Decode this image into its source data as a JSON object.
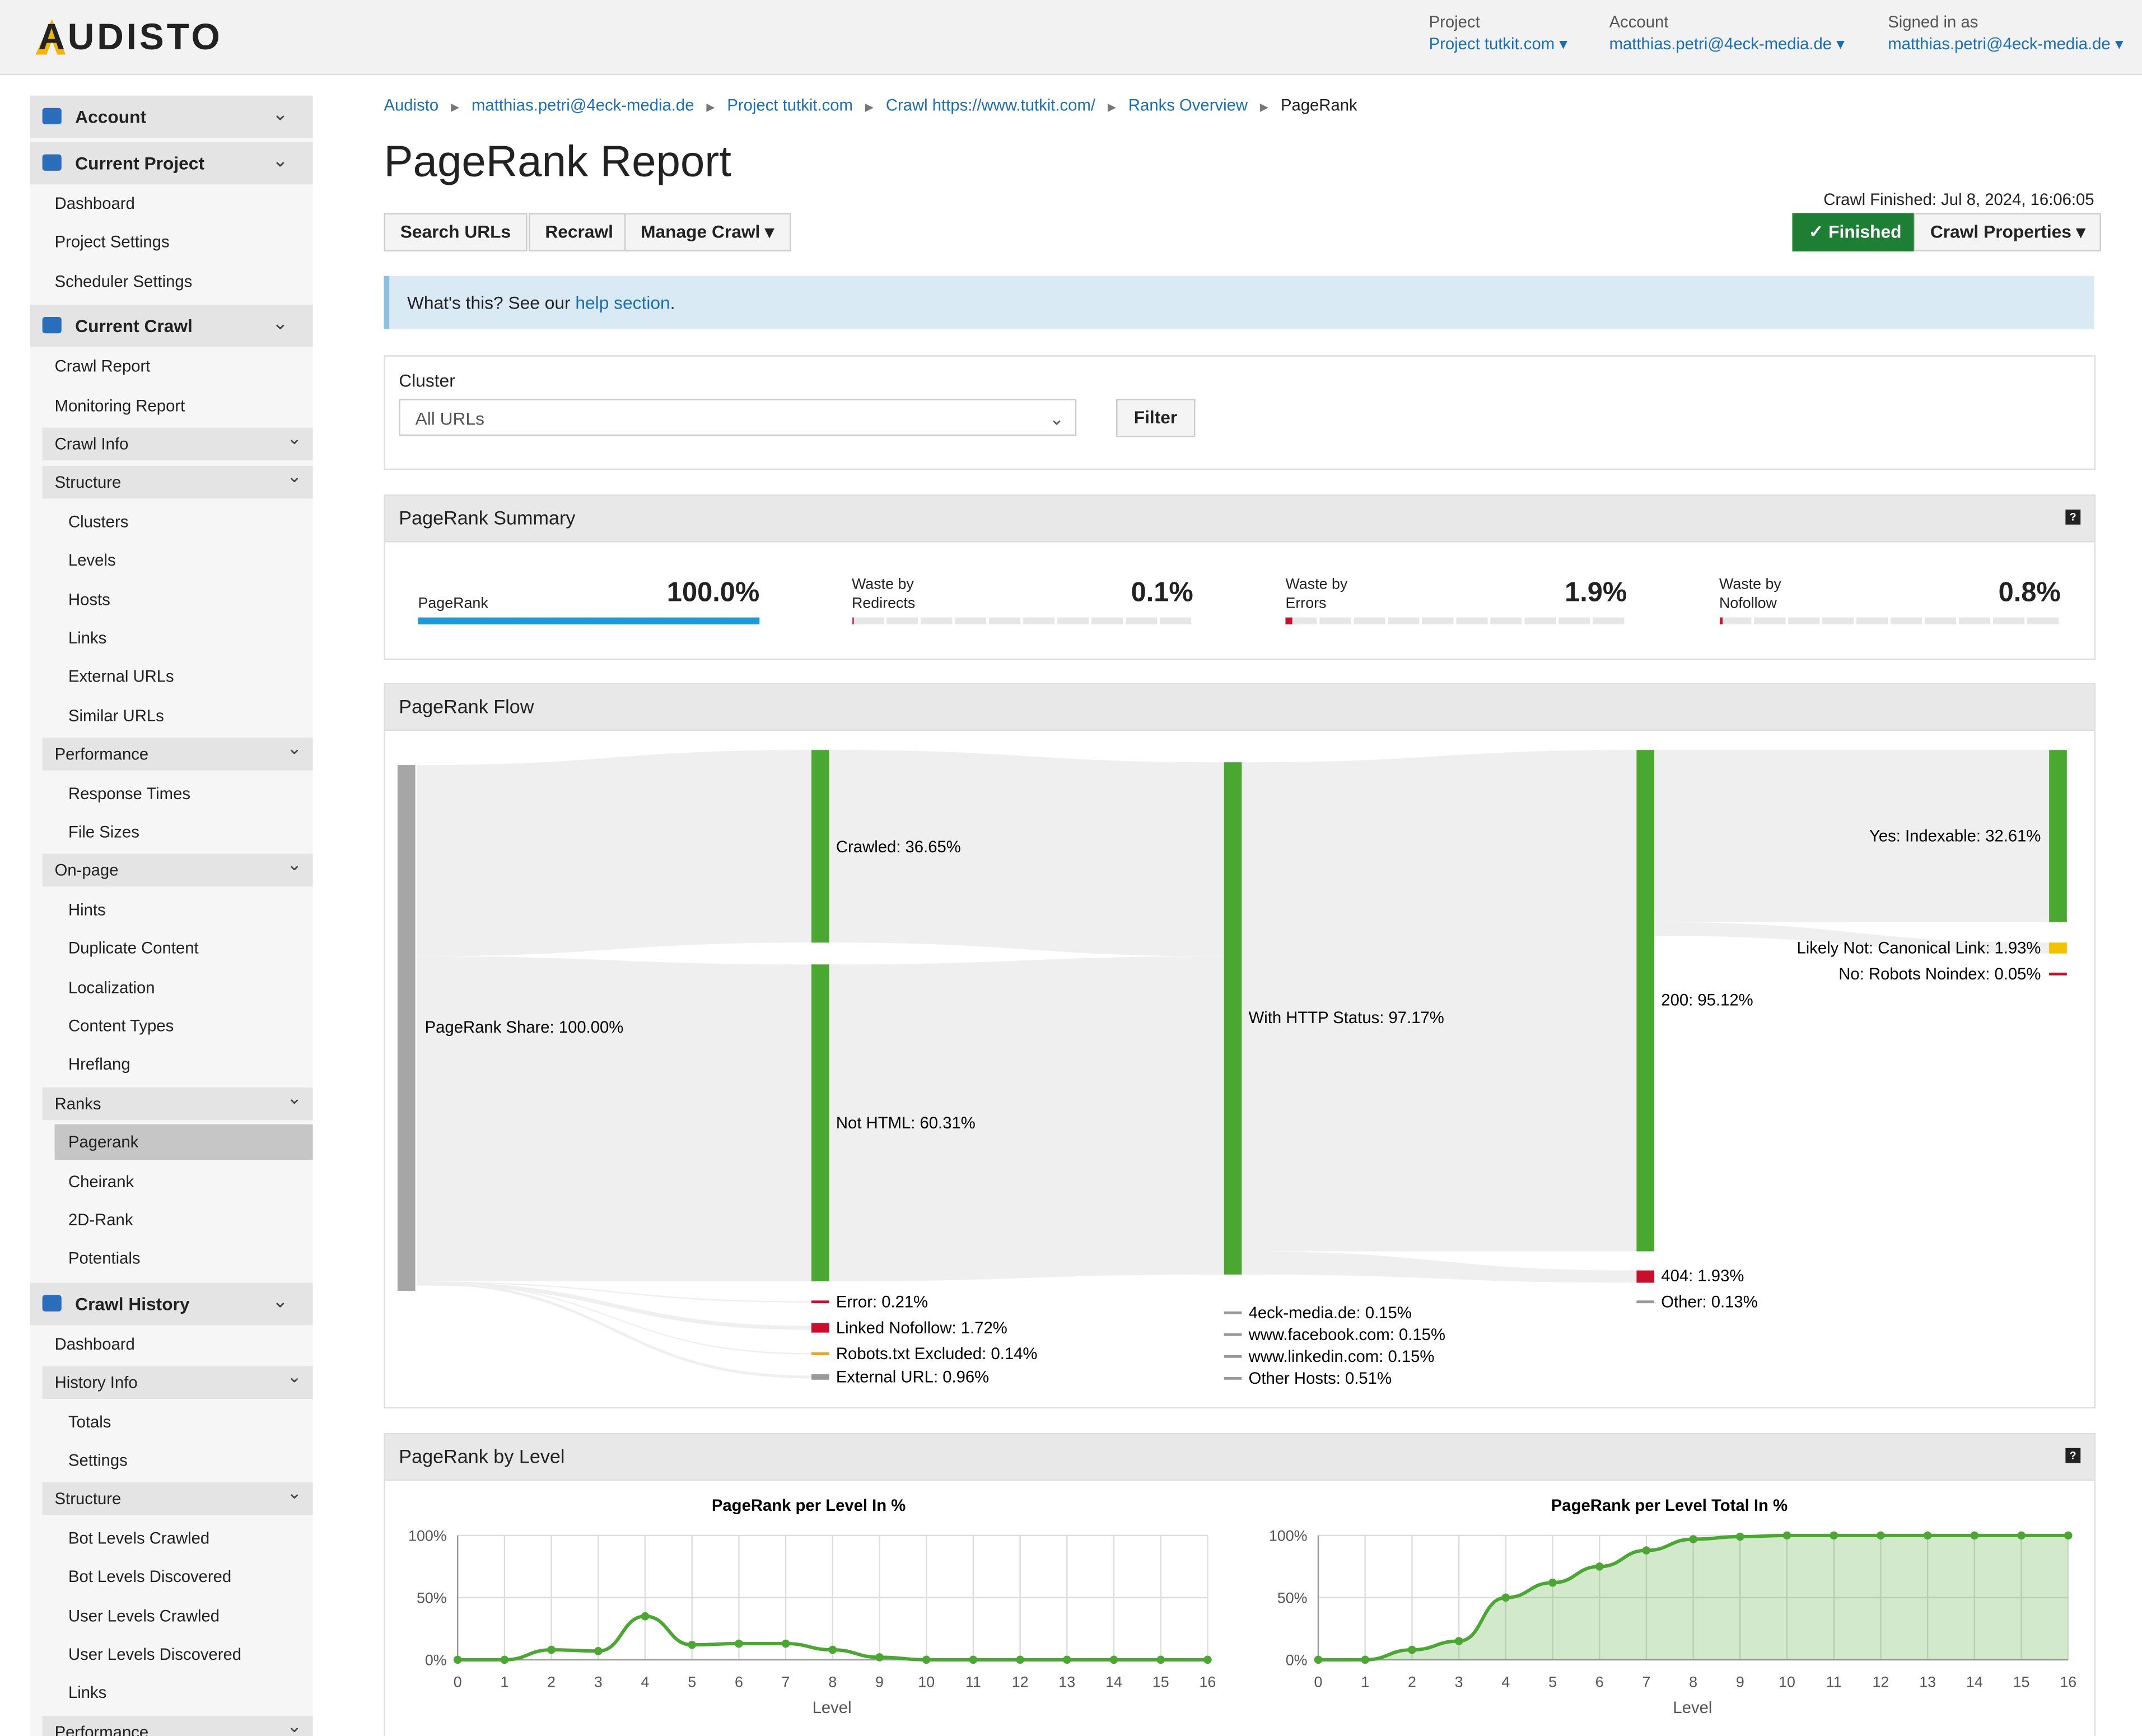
{
  "header": {
    "logo": "AUDISTO",
    "project_label": "Project",
    "project": "Project tutkit.com",
    "account_label": "Account",
    "account": "matthias.petri@4eck-media.de",
    "signed_label": "Signed in as",
    "signed": "matthias.petri@4eck-media.de"
  },
  "sidebar": [
    {
      "title": "Account",
      "items": []
    },
    {
      "title": "Current Project",
      "items": [
        "Dashboard",
        "Project Settings",
        "Scheduler Settings"
      ]
    },
    {
      "title": "Current Crawl",
      "items": [
        "Crawl Report",
        "Monitoring Report",
        {
          "title": "Crawl Info",
          "items": []
        },
        {
          "title": "Structure",
          "items": [
            "Clusters",
            "Levels",
            "Hosts",
            "Links",
            "External URLs",
            "Similar URLs"
          ]
        },
        {
          "title": "Performance",
          "items": [
            "Response Times",
            "File Sizes"
          ]
        },
        {
          "title": "On-page",
          "items": [
            "Hints",
            "Duplicate Content",
            "Localization",
            "Content Types",
            "Hreflang"
          ]
        },
        {
          "title": "Ranks",
          "items": [
            {
              "label": "Pagerank",
              "selected": true
            },
            "Cheirank",
            "2D-Rank",
            "Potentials"
          ]
        }
      ]
    },
    {
      "title": "Crawl History",
      "items": [
        "Dashboard",
        {
          "title": "History Info",
          "items": [
            "Totals",
            "Settings"
          ]
        },
        {
          "title": "Structure",
          "items": [
            "Bot Levels Crawled",
            "Bot Levels Discovered",
            "User Levels Crawled",
            "User Levels Discovered",
            "Links"
          ]
        },
        {
          "title": "Performance",
          "items": []
        }
      ]
    }
  ],
  "breadcrumbs": [
    "Audisto",
    "matthias.petri@4eck-media.de",
    "Project tutkit.com",
    "Crawl https://www.tutkit.com/",
    "Ranks Overview",
    "PageRank"
  ],
  "title": "PageRank Report",
  "crawl_finished": "Crawl Finished: Jul 8, 2024, 16:06:05",
  "buttons": [
    "Search URLs",
    "Recrawl",
    "Manage Crawl"
  ],
  "status": "Finished",
  "properties": "Crawl Properties",
  "info": {
    "text": "What's this? See our",
    "link": "help section",
    "end": "."
  },
  "cluster": {
    "label": "Cluster",
    "select": "All URLs",
    "button": "Filter"
  },
  "summary": {
    "title": "PageRank Summary",
    "items": [
      {
        "label": "PageRank",
        "value": 100.0,
        "value_label": "100.0%"
      },
      {
        "label": "Waste by\nRedirects",
        "value": 0.1,
        "value_label": "0.1%"
      },
      {
        "label": "Waste by\nErrors",
        "value": 1.9,
        "value_label": "1.9%"
      },
      {
        "label": "Waste by\nNofollow",
        "value": 0.8,
        "value_label": "0.8%"
      }
    ]
  },
  "flow": {
    "title": "PageRank Flow",
    "labels": [
      "PageRank Share: 100.00%",
      "Crawled: 36.65%",
      "Not HTML: 60.31%",
      "Error: 0.21%",
      "Linked Nofollow: 1.72%",
      "Robots.txt Excluded: 0.14%",
      "External URL: 0.96%",
      "With HTTP Status: 97.17%",
      "4eck-media.de: 0.15%",
      "www.facebook.com: 0.15%",
      "www.linkedin.com: 0.15%",
      "Other Hosts: 0.51%",
      "200: 95.12%",
      "404: 1.93%",
      "Other: 0.13%",
      "Yes: Indexable: 32.61%",
      "Likely Not: Canonical Link: 1.93%",
      "No: Robots Noindex: 0.05%"
    ]
  },
  "level_title": "PageRank by Level",
  "chart_data": [
    {
      "type": "line",
      "title": "PageRank per Level In %",
      "x_label": "Level",
      "color": "#4aa832",
      "x": [
        0,
        1,
        2,
        3,
        4,
        5,
        6,
        7,
        8,
        9,
        10,
        11,
        12,
        13,
        14,
        15,
        16
      ],
      "values": [
        0,
        0,
        8,
        7,
        35,
        12,
        13,
        13,
        8,
        2,
        0,
        0,
        0,
        0,
        0,
        0,
        0
      ],
      "xlim": [
        0,
        16
      ],
      "xticks": [
        0,
        1,
        2,
        3,
        4,
        5,
        6,
        7,
        8,
        9,
        10,
        11,
        12,
        13,
        14,
        15,
        16
      ],
      "ylim": [
        0,
        100
      ],
      "yticks": [
        {
          "value": 0,
          "label": "0%"
        },
        {
          "value": 50,
          "label": "50%"
        },
        {
          "value": 100,
          "label": "100%"
        }
      ],
      "grid": true
    },
    {
      "type": "area",
      "title": "PageRank per Level Total In %",
      "x_label": "Level",
      "color": "#4aa832",
      "x": [
        0,
        1,
        2,
        3,
        4,
        5,
        6,
        7,
        8,
        9,
        10,
        11,
        12,
        13,
        14,
        15,
        16
      ],
      "values": [
        0,
        0,
        8,
        15,
        50,
        62,
        75,
        88,
        97,
        99,
        100,
        100,
        100,
        100,
        100,
        100,
        100
      ],
      "xlim": [
        0,
        16
      ],
      "xticks": [
        0,
        1,
        2,
        3,
        4,
        5,
        6,
        7,
        8,
        9,
        10,
        11,
        12,
        13,
        14,
        15,
        16
      ],
      "ylim": [
        0,
        100
      ],
      "yticks": [
        {
          "value": 0,
          "label": "0%"
        },
        {
          "value": 50,
          "label": "50%"
        },
        {
          "value": 100,
          "label": "100%"
        }
      ],
      "grid": true
    }
  ]
}
